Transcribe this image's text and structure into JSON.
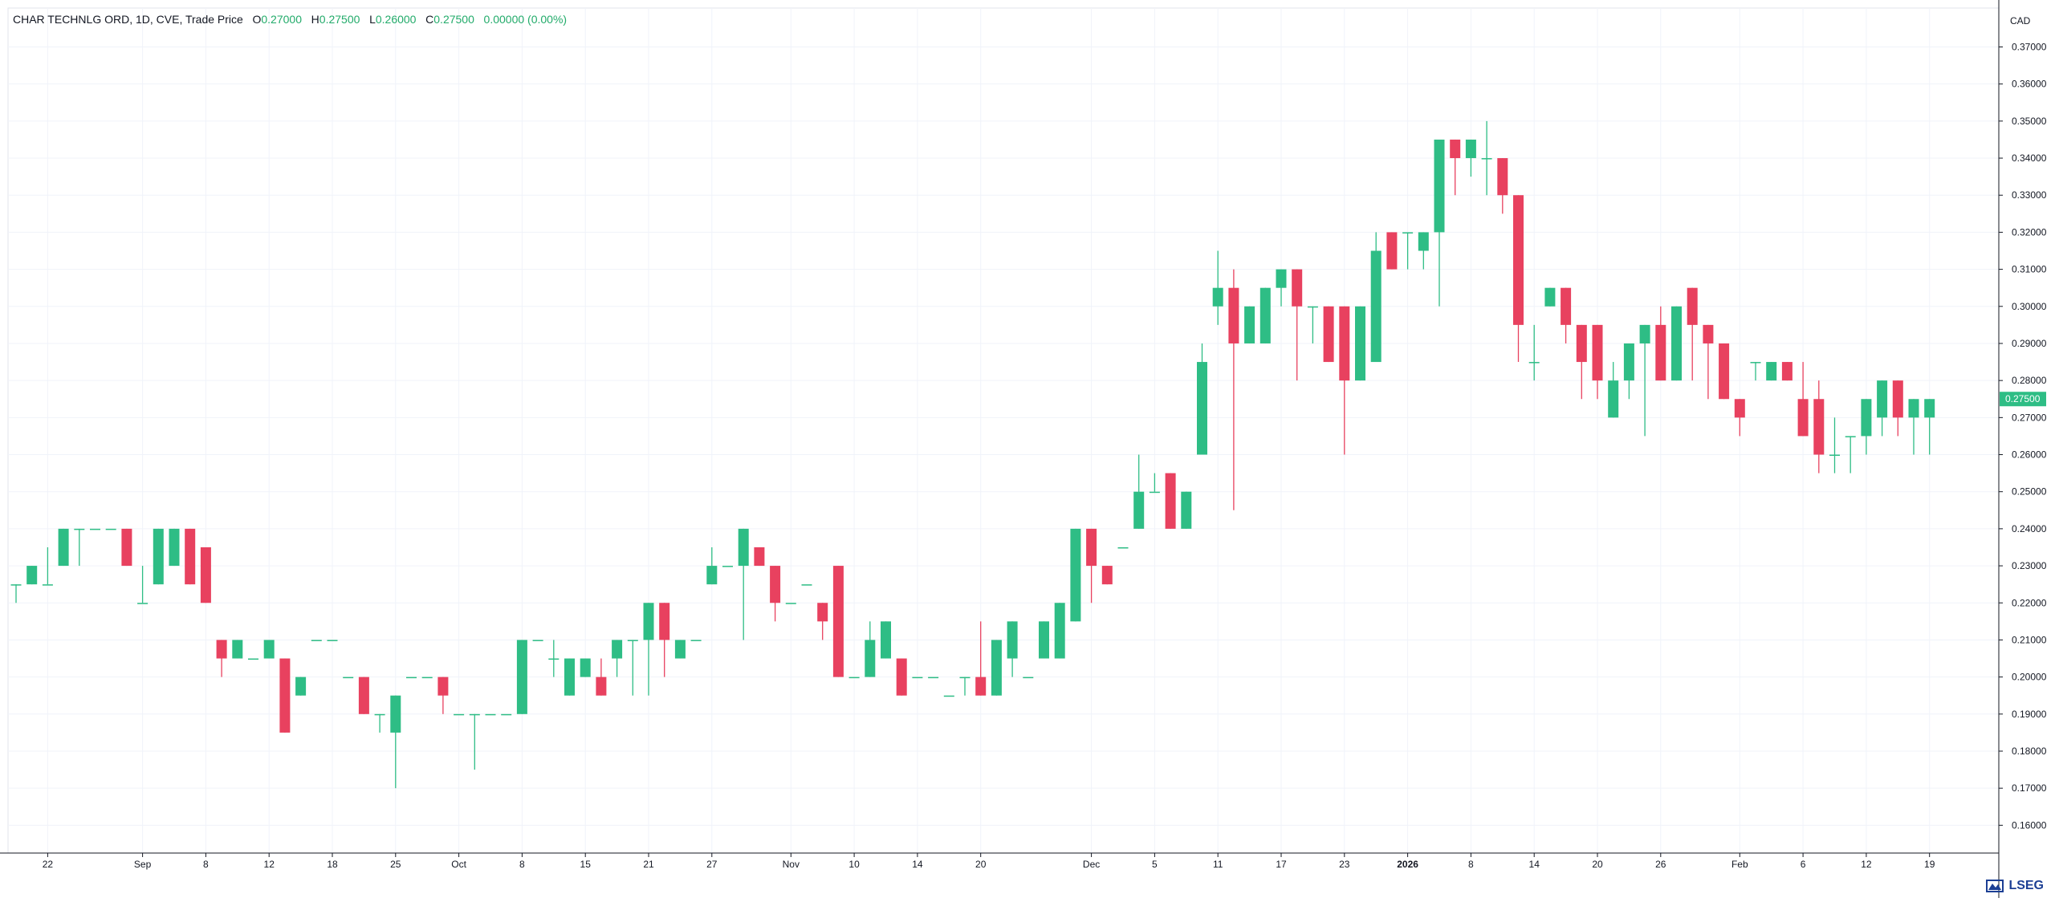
{
  "legend": {
    "symbol": "CHAR TECHNLG ORD, 1D, CVE, Trade Price",
    "o_label": "O",
    "o_value": "0.27000",
    "h_label": "H",
    "h_value": "0.27500",
    "l_label": "L",
    "l_value": "0.26000",
    "c_label": "C",
    "c_value": "0.27500",
    "change": "0.00000 (0.00%)"
  },
  "currency": "CAD",
  "brand": "LSEG",
  "colors": {
    "up": "#2ebd85",
    "down": "#e8415f",
    "grid": "#f0f3fa",
    "axis": "#131722",
    "last_price_bg": "#2ebd85"
  },
  "chart_data": {
    "type": "candlestick",
    "y_range": [
      0.1525,
      0.3805
    ],
    "y_ticks": [
      "0.16000",
      "0.17000",
      "0.18000",
      "0.19000",
      "0.20000",
      "0.21000",
      "0.22000",
      "0.23000",
      "0.24000",
      "0.25000",
      "0.26000",
      "0.27000",
      "0.28000",
      "0.29000",
      "0.30000",
      "0.31000",
      "0.32000",
      "0.33000",
      "0.34000",
      "0.35000",
      "0.36000",
      "0.37000"
    ],
    "x_ticks": [
      {
        "label": "22",
        "index": 2
      },
      {
        "label": "Sep",
        "index": 8
      },
      {
        "label": "8",
        "index": 12
      },
      {
        "label": "12",
        "index": 16
      },
      {
        "label": "18",
        "index": 20
      },
      {
        "label": "25",
        "index": 24
      },
      {
        "label": "Oct",
        "index": 28
      },
      {
        "label": "8",
        "index": 32
      },
      {
        "label": "15",
        "index": 36
      },
      {
        "label": "21",
        "index": 40
      },
      {
        "label": "27",
        "index": 44
      },
      {
        "label": "Nov",
        "index": 49
      },
      {
        "label": "10",
        "index": 53
      },
      {
        "label": "14",
        "index": 57
      },
      {
        "label": "20",
        "index": 61
      },
      {
        "label": "Dec",
        "index": 68
      },
      {
        "label": "5",
        "index": 72
      },
      {
        "label": "11",
        "index": 76
      },
      {
        "label": "17",
        "index": 80
      },
      {
        "label": "23",
        "index": 84
      },
      {
        "label": "2026",
        "index": 88
      },
      {
        "label": "8",
        "index": 92
      },
      {
        "label": "14",
        "index": 96
      },
      {
        "label": "20",
        "index": 100
      },
      {
        "label": "26",
        "index": 104
      },
      {
        "label": "Feb",
        "index": 109
      },
      {
        "label": "6",
        "index": 113
      },
      {
        "label": "12",
        "index": 117
      },
      {
        "label": "19",
        "index": 121
      }
    ],
    "last_price": "0.27500",
    "candles": [
      [
        0.225,
        0.225,
        0.22,
        0.225
      ],
      [
        0.225,
        0.23,
        0.225,
        0.23
      ],
      [
        0.225,
        0.235,
        0.225,
        0.225
      ],
      [
        0.23,
        0.24,
        0.23,
        0.24
      ],
      [
        0.24,
        0.24,
        0.23,
        0.24
      ],
      [
        0.24,
        0.24,
        0.24,
        0.24
      ],
      [
        0.24,
        0.24,
        0.24,
        0.24
      ],
      [
        0.24,
        0.24,
        0.23,
        0.23
      ],
      [
        0.22,
        0.23,
        0.22,
        0.22
      ],
      [
        0.225,
        0.24,
        0.225,
        0.24
      ],
      [
        0.23,
        0.24,
        0.23,
        0.24
      ],
      [
        0.24,
        0.24,
        0.225,
        0.225
      ],
      [
        0.235,
        0.235,
        0.22,
        0.22
      ],
      [
        0.21,
        0.21,
        0.2,
        0.205
      ],
      [
        0.205,
        0.21,
        0.205,
        0.21
      ],
      [
        0.205,
        0.205,
        0.205,
        0.205
      ],
      [
        0.205,
        0.21,
        0.205,
        0.21
      ],
      [
        0.205,
        0.205,
        0.185,
        0.185
      ],
      [
        0.195,
        0.2,
        0.195,
        0.2
      ],
      [
        0.21,
        0.21,
        0.21,
        0.21
      ],
      [
        0.21,
        0.21,
        0.21,
        0.21
      ],
      [
        0.2,
        0.2,
        0.2,
        0.2
      ],
      [
        0.2,
        0.2,
        0.19,
        0.19
      ],
      [
        0.19,
        0.19,
        0.185,
        0.19
      ],
      [
        0.185,
        0.195,
        0.17,
        0.195
      ],
      [
        0.2,
        0.2,
        0.2,
        0.2
      ],
      [
        0.2,
        0.2,
        0.2,
        0.2
      ],
      [
        0.2,
        0.2,
        0.19,
        0.195
      ],
      [
        0.19,
        0.19,
        0.19,
        0.19
      ],
      [
        0.19,
        0.19,
        0.175,
        0.19
      ],
      [
        0.19,
        0.19,
        0.19,
        0.19
      ],
      [
        0.19,
        0.19,
        0.19,
        0.19
      ],
      [
        0.19,
        0.21,
        0.19,
        0.21
      ],
      [
        0.21,
        0.21,
        0.21,
        0.21
      ],
      [
        0.205,
        0.21,
        0.2,
        0.205
      ],
      [
        0.195,
        0.205,
        0.195,
        0.205
      ],
      [
        0.2,
        0.205,
        0.2,
        0.205
      ],
      [
        0.2,
        0.205,
        0.195,
        0.195
      ],
      [
        0.205,
        0.21,
        0.2,
        0.21
      ],
      [
        0.21,
        0.21,
        0.195,
        0.21
      ],
      [
        0.21,
        0.22,
        0.195,
        0.22
      ],
      [
        0.22,
        0.22,
        0.2,
        0.21
      ],
      [
        0.205,
        0.21,
        0.205,
        0.21
      ],
      [
        0.21,
        0.21,
        0.21,
        0.21
      ],
      [
        0.225,
        0.235,
        0.225,
        0.23
      ],
      [
        0.23,
        0.23,
        0.23,
        0.23
      ],
      [
        0.23,
        0.24,
        0.21,
        0.24
      ],
      [
        0.235,
        0.235,
        0.23,
        0.23
      ],
      [
        0.23,
        0.23,
        0.215,
        0.22
      ],
      [
        0.22,
        0.22,
        0.22,
        0.22
      ],
      [
        0.225,
        0.225,
        0.225,
        0.225
      ],
      [
        0.22,
        0.22,
        0.21,
        0.215
      ],
      [
        0.23,
        0.23,
        0.2,
        0.2
      ],
      [
        0.2,
        0.2,
        0.2,
        0.2
      ],
      [
        0.2,
        0.215,
        0.2,
        0.21
      ],
      [
        0.205,
        0.215,
        0.205,
        0.215
      ],
      [
        0.205,
        0.205,
        0.195,
        0.195
      ],
      [
        0.2,
        0.2,
        0.2,
        0.2
      ],
      [
        0.2,
        0.2,
        0.2,
        0.2
      ],
      [
        0.195,
        0.195,
        0.195,
        0.195
      ],
      [
        0.2,
        0.2,
        0.195,
        0.2
      ],
      [
        0.2,
        0.215,
        0.195,
        0.195
      ],
      [
        0.195,
        0.21,
        0.195,
        0.21
      ],
      [
        0.205,
        0.215,
        0.2,
        0.215
      ],
      [
        0.2,
        0.2,
        0.2,
        0.2
      ],
      [
        0.205,
        0.215,
        0.205,
        0.215
      ],
      [
        0.205,
        0.22,
        0.205,
        0.22
      ],
      [
        0.215,
        0.24,
        0.215,
        0.24
      ],
      [
        0.24,
        0.24,
        0.22,
        0.23
      ],
      [
        0.23,
        0.23,
        0.225,
        0.225
      ],
      [
        0.235,
        0.235,
        0.235,
        0.235
      ],
      [
        0.24,
        0.26,
        0.24,
        0.25
      ],
      [
        0.25,
        0.255,
        0.25,
        0.25
      ],
      [
        0.255,
        0.255,
        0.24,
        0.24
      ],
      [
        0.24,
        0.25,
        0.24,
        0.25
      ],
      [
        0.26,
        0.29,
        0.26,
        0.285
      ],
      [
        0.3,
        0.315,
        0.295,
        0.305
      ],
      [
        0.305,
        0.31,
        0.245,
        0.29
      ],
      [
        0.29,
        0.3,
        0.29,
        0.3
      ],
      [
        0.29,
        0.305,
        0.29,
        0.305
      ],
      [
        0.305,
        0.31,
        0.3,
        0.31
      ],
      [
        0.31,
        0.31,
        0.28,
        0.3
      ],
      [
        0.3,
        0.3,
        0.29,
        0.3
      ],
      [
        0.3,
        0.3,
        0.285,
        0.285
      ],
      [
        0.3,
        0.3,
        0.26,
        0.28
      ],
      [
        0.28,
        0.3,
        0.28,
        0.3
      ],
      [
        0.285,
        0.32,
        0.285,
        0.315
      ],
      [
        0.32,
        0.32,
        0.31,
        0.31
      ],
      [
        0.32,
        0.32,
        0.31,
        0.32
      ],
      [
        0.315,
        0.32,
        0.31,
        0.32
      ],
      [
        0.32,
        0.345,
        0.3,
        0.345
      ],
      [
        0.345,
        0.345,
        0.33,
        0.34
      ],
      [
        0.34,
        0.345,
        0.335,
        0.345
      ],
      [
        0.34,
        0.35,
        0.33,
        0.34
      ],
      [
        0.34,
        0.34,
        0.325,
        0.33
      ],
      [
        0.33,
        0.33,
        0.285,
        0.295
      ],
      [
        0.285,
        0.295,
        0.28,
        0.285
      ],
      [
        0.3,
        0.305,
        0.3,
        0.305
      ],
      [
        0.305,
        0.305,
        0.29,
        0.295
      ],
      [
        0.295,
        0.295,
        0.275,
        0.285
      ],
      [
        0.295,
        0.295,
        0.275,
        0.28
      ],
      [
        0.27,
        0.285,
        0.27,
        0.28
      ],
      [
        0.28,
        0.29,
        0.275,
        0.29
      ],
      [
        0.29,
        0.295,
        0.265,
        0.295
      ],
      [
        0.295,
        0.3,
        0.28,
        0.28
      ],
      [
        0.28,
        0.3,
        0.28,
        0.3
      ],
      [
        0.305,
        0.305,
        0.28,
        0.295
      ],
      [
        0.295,
        0.295,
        0.275,
        0.29
      ],
      [
        0.29,
        0.29,
        0.275,
        0.275
      ],
      [
        0.275,
        0.275,
        0.265,
        0.27
      ],
      [
        0.285,
        0.285,
        0.28,
        0.285
      ],
      [
        0.28,
        0.285,
        0.28,
        0.285
      ],
      [
        0.285,
        0.285,
        0.28,
        0.28
      ],
      [
        0.275,
        0.285,
        0.265,
        0.265
      ],
      [
        0.275,
        0.28,
        0.255,
        0.26
      ],
      [
        0.26,
        0.27,
        0.255,
        0.26
      ],
      [
        0.265,
        0.265,
        0.255,
        0.265
      ],
      [
        0.265,
        0.275,
        0.26,
        0.275
      ],
      [
        0.27,
        0.28,
        0.265,
        0.28
      ],
      [
        0.28,
        0.28,
        0.265,
        0.27
      ],
      [
        0.27,
        0.275,
        0.26,
        0.275
      ],
      [
        0.27,
        0.275,
        0.26,
        0.275
      ]
    ]
  }
}
